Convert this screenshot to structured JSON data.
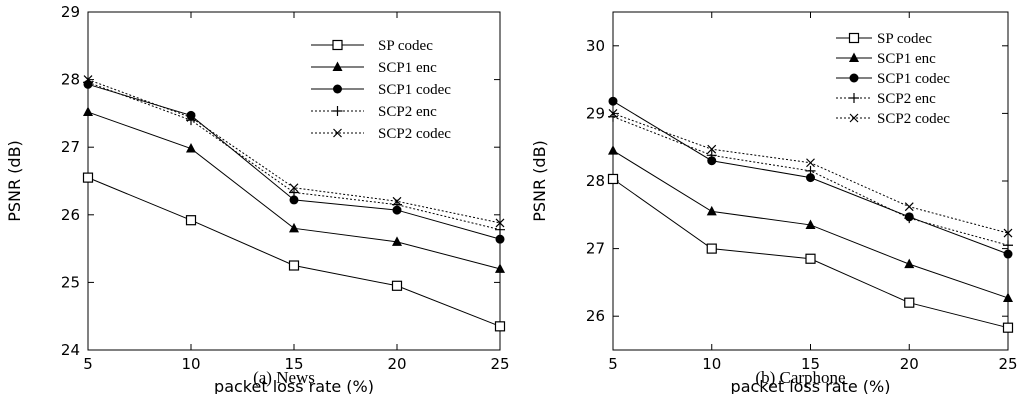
{
  "chart_data": [
    {
      "type": "line",
      "caption": "(a) News",
      "xlabel": "packet loss rate (%)",
      "ylabel": "PSNR (dB)",
      "xlim": [
        5,
        25
      ],
      "ylim": [
        24,
        29
      ],
      "xticks": [
        "5",
        "10",
        "15",
        "20",
        "25"
      ],
      "yticks": [
        "24",
        "25",
        "26",
        "27",
        "28",
        "29"
      ],
      "legend_position": "top-right",
      "x": [
        5,
        10,
        15,
        20,
        25
      ],
      "series": [
        {
          "name": "SP codec",
          "marker": "square-open",
          "dash": "solid",
          "values": [
            26.55,
            25.92,
            25.25,
            24.95,
            24.35
          ]
        },
        {
          "name": "SCP1 enc",
          "marker": "triangle",
          "dash": "solid",
          "values": [
            27.52,
            26.98,
            25.8,
            25.6,
            25.2
          ]
        },
        {
          "name": "SCP1 codec",
          "marker": "circle",
          "dash": "solid",
          "values": [
            27.93,
            27.47,
            26.22,
            26.07,
            25.64
          ]
        },
        {
          "name": "SCP2 enc",
          "marker": "plus",
          "dash": "dotted",
          "values": [
            27.96,
            27.4,
            26.33,
            26.15,
            25.78
          ]
        },
        {
          "name": "SCP2 codec",
          "marker": "cross",
          "dash": "dotted",
          "values": [
            28.0,
            27.44,
            26.4,
            26.2,
            25.88
          ]
        }
      ]
    },
    {
      "type": "line",
      "caption": "(b) Carphone",
      "xlabel": "packet loss rate (%)",
      "ylabel": "PSNR (dB)",
      "xlim": [
        5,
        25
      ],
      "ylim": [
        25.5,
        30.5
      ],
      "xticks": [
        "5",
        "10",
        "15",
        "20",
        "25"
      ],
      "yticks": [
        "26",
        "27",
        "28",
        "29",
        "30"
      ],
      "legend_position": "top-right",
      "x": [
        5,
        10,
        15,
        20,
        25
      ],
      "series": [
        {
          "name": "SP codec",
          "marker": "square-open",
          "dash": "solid",
          "values": [
            28.03,
            27.0,
            26.85,
            26.2,
            25.83
          ]
        },
        {
          "name": "SCP1 enc",
          "marker": "triangle",
          "dash": "solid",
          "values": [
            28.45,
            27.55,
            27.35,
            26.77,
            26.27
          ]
        },
        {
          "name": "SCP1 codec",
          "marker": "circle",
          "dash": "solid",
          "values": [
            29.18,
            28.3,
            28.05,
            27.47,
            26.92
          ]
        },
        {
          "name": "SCP2 enc",
          "marker": "plus",
          "dash": "dotted",
          "values": [
            28.95,
            28.38,
            28.15,
            27.45,
            27.05
          ]
        },
        {
          "name": "SCP2 codec",
          "marker": "cross",
          "dash": "dotted",
          "values": [
            29.0,
            28.47,
            28.27,
            27.62,
            27.23
          ]
        }
      ]
    }
  ]
}
